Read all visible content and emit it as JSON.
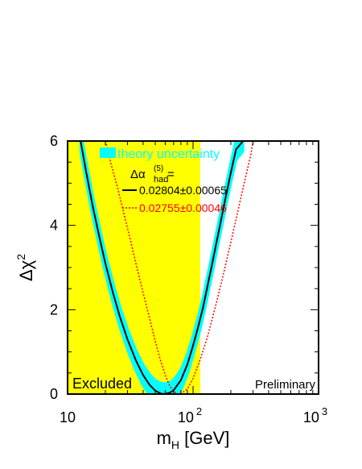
{
  "chart_data": {
    "type": "line",
    "xlabel": {
      "main": "m",
      "sub": "H",
      "unit": " [GeV]"
    },
    "ylabel": {
      "main": "Δχ",
      "sup": "2"
    },
    "xscale": "log",
    "xlim": [
      10,
      1000
    ],
    "ylim": [
      0,
      6
    ],
    "x_ticks": [
      {
        "value": 10,
        "label": "10",
        "sup": ""
      },
      {
        "value": 100,
        "label": "10",
        "sup": "2"
      },
      {
        "value": 1000,
        "label": "10",
        "sup": "3"
      }
    ],
    "y_ticks": [
      {
        "value": 0,
        "label": "0"
      },
      {
        "value": 2,
        "label": "2"
      },
      {
        "value": 4,
        "label": "4"
      },
      {
        "value": 6,
        "label": "6"
      }
    ],
    "excluded_region": {
      "x_from": 10,
      "x_to": 114,
      "label": "Excluded",
      "color": "#ffff00"
    },
    "preliminary_label": "Preliminary",
    "legend": {
      "band_label": "theory uncertainty",
      "header": {
        "main": "Δα",
        "sup": "(5)",
        "sub": "had",
        "tail": " ="
      },
      "entries": [
        {
          "label": "0.02804±0.00065",
          "color": "#000000",
          "style": "solid"
        },
        {
          "label": "0.02755±0.00046",
          "color": "#ff0000",
          "style": "dotted"
        }
      ]
    },
    "series": [
      {
        "label": "0.02804±0.00065",
        "color": "#000000",
        "style": "solid",
        "band_color": "#00ffff",
        "band_width": 0.25,
        "x": [
          12.7,
          14,
          16,
          18,
          20,
          23,
          26,
          30,
          35,
          40,
          45,
          50,
          55,
          59,
          65,
          70,
          80,
          90,
          100,
          110,
          120,
          140,
          160,
          180,
          200,
          220,
          250
        ],
        "y": [
          6,
          5.3,
          4.4,
          3.7,
          3.1,
          2.4,
          1.85,
          1.3,
          0.8,
          0.45,
          0.22,
          0.08,
          0.015,
          0,
          0.03,
          0.09,
          0.33,
          0.7,
          1.15,
          1.6,
          2.05,
          3.0,
          3.85,
          4.6,
          5.25,
          5.8,
          6
        ]
      },
      {
        "label": "0.02755±0.00046",
        "color": "#ff0000",
        "style": "dotted",
        "x": [
          20,
          22,
          25,
          28,
          32,
          36,
          40,
          45,
          50,
          55,
          60,
          65,
          70,
          75,
          80,
          90,
          100,
          115,
          130,
          150,
          170,
          200,
          230,
          260,
          290,
          300
        ],
        "y": [
          6,
          5.5,
          4.9,
          4.3,
          3.6,
          2.95,
          2.4,
          1.8,
          1.25,
          0.8,
          0.45,
          0.2,
          0.06,
          0.005,
          0.01,
          0.12,
          0.37,
          0.85,
          1.35,
          2.05,
          2.7,
          3.6,
          4.4,
          5.1,
          5.7,
          6
        ]
      }
    ]
  }
}
